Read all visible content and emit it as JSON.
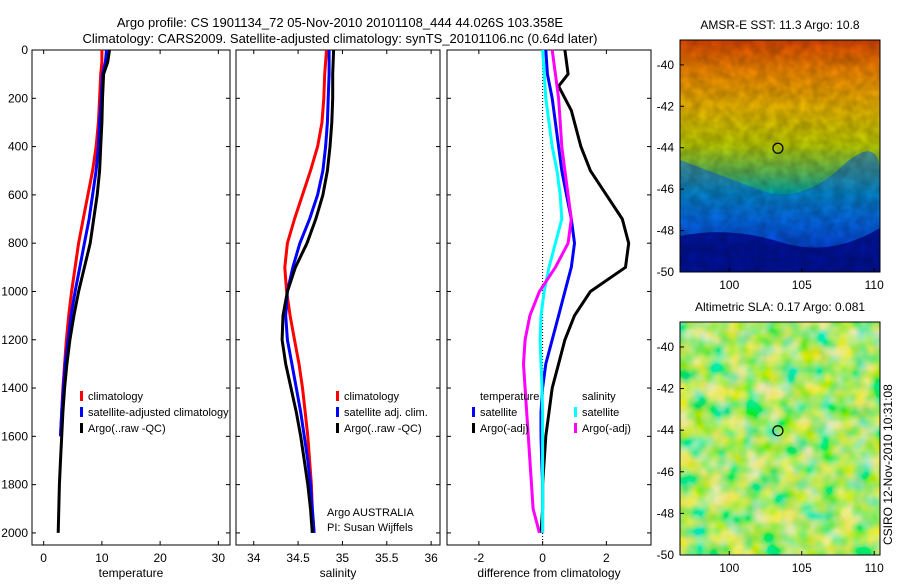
{
  "header": {
    "line1": "Argo profile: CS 1901134_72 05-Nov-2010 20101108_444 44.026S 103.358E",
    "line2": "Climatology: CARS2009. Satellite-adjusted climatology: synTS_20101106.nc (0.64d later)"
  },
  "credit": {
    "line1": "Argo AUSTRALIA",
    "line2": "PI: Susan Wijffels"
  },
  "side_stamp": "CSIRO 12-Nov-2010 10:31:08",
  "colors": {
    "red": "#ff0000",
    "blue": "#0000ff",
    "black": "#000000",
    "cyan": "#00ffff",
    "magenta": "#ff00ff"
  },
  "chart_data": [
    {
      "type": "line",
      "xlabel": "temperature",
      "ylabel": "",
      "xlim": [
        -2,
        32
      ],
      "ylim": [
        2050,
        0
      ],
      "xticks": [
        0,
        10,
        20,
        30
      ],
      "yticks": [
        0,
        200,
        400,
        600,
        800,
        1000,
        1200,
        1400,
        1600,
        1800,
        2000
      ],
      "legend_position": "lower-middle",
      "series": [
        {
          "name": "climatology",
          "color": "#ff0000",
          "points": [
            [
              10.0,
              0
            ],
            [
              10.0,
              50
            ],
            [
              9.8,
              100
            ],
            [
              9.6,
              200
            ],
            [
              9.4,
              300
            ],
            [
              9.0,
              400
            ],
            [
              8.4,
              500
            ],
            [
              7.6,
              600
            ],
            [
              6.8,
              700
            ],
            [
              6.0,
              800
            ],
            [
              5.4,
              900
            ],
            [
              4.8,
              1000
            ],
            [
              4.3,
              1100
            ],
            [
              3.9,
              1200
            ],
            [
              3.6,
              1300
            ],
            [
              3.3,
              1400
            ],
            [
              3.1,
              1500
            ],
            [
              2.9,
              1600
            ]
          ]
        },
        {
          "name": "satellite-adjusted climatology",
          "color": "#0000ff",
          "points": [
            [
              10.8,
              0
            ],
            [
              10.6,
              50
            ],
            [
              10.1,
              100
            ],
            [
              9.9,
              200
            ],
            [
              9.6,
              300
            ],
            [
              9.4,
              400
            ],
            [
              9.0,
              500
            ],
            [
              8.4,
              600
            ],
            [
              7.8,
              700
            ],
            [
              7.0,
              800
            ],
            [
              6.2,
              900
            ],
            [
              5.4,
              1000
            ],
            [
              4.7,
              1100
            ],
            [
              4.2,
              1200
            ],
            [
              3.7,
              1300
            ],
            [
              3.4,
              1400
            ],
            [
              3.1,
              1500
            ],
            [
              2.9,
              1600
            ]
          ]
        },
        {
          "name": "Argo(..raw -QC)",
          "color": "#000000",
          "points": [
            [
              11.3,
              0
            ],
            [
              11.0,
              50
            ],
            [
              10.3,
              100
            ],
            [
              10.1,
              200
            ],
            [
              10.0,
              300
            ],
            [
              9.8,
              400
            ],
            [
              9.6,
              500
            ],
            [
              9.2,
              600
            ],
            [
              8.6,
              700
            ],
            [
              8.0,
              800
            ],
            [
              7.0,
              900
            ],
            [
              6.0,
              1000
            ],
            [
              5.2,
              1100
            ],
            [
              4.5,
              1200
            ],
            [
              4.0,
              1300
            ],
            [
              3.6,
              1400
            ],
            [
              3.3,
              1500
            ],
            [
              3.1,
              1600
            ],
            [
              2.9,
              1700
            ],
            [
              2.7,
              1800
            ],
            [
              2.6,
              1900
            ],
            [
              2.5,
              2000
            ]
          ]
        }
      ]
    },
    {
      "type": "line",
      "xlabel": "salinity",
      "ylabel": "",
      "xlim": [
        33.8,
        36.1
      ],
      "ylim": [
        2050,
        0
      ],
      "xticks": [
        34,
        34.5,
        35,
        35.5,
        36
      ],
      "yticks": [
        0,
        200,
        400,
        600,
        800,
        1000,
        1200,
        1400,
        1600,
        1800,
        2000
      ],
      "legend_position": "lower-right",
      "series": [
        {
          "name": "climatology",
          "color": "#ff0000",
          "points": [
            [
              34.82,
              0
            ],
            [
              34.8,
              100
            ],
            [
              34.79,
              200
            ],
            [
              34.77,
              300
            ],
            [
              34.72,
              400
            ],
            [
              34.64,
              500
            ],
            [
              34.55,
              600
            ],
            [
              34.46,
              700
            ],
            [
              34.38,
              800
            ],
            [
              34.35,
              900
            ],
            [
              34.37,
              1000
            ],
            [
              34.41,
              1100
            ],
            [
              34.46,
              1200
            ],
            [
              34.51,
              1300
            ],
            [
              34.55,
              1400
            ],
            [
              34.58,
              1500
            ],
            [
              34.61,
              1600
            ],
            [
              34.63,
              1700
            ],
            [
              34.65,
              1800
            ],
            [
              34.66,
              1900
            ],
            [
              34.68,
              2000
            ]
          ]
        },
        {
          "name": "satellite adj. clim.",
          "color": "#0000ff",
          "points": [
            [
              34.85,
              0
            ],
            [
              34.85,
              100
            ],
            [
              34.84,
              200
            ],
            [
              34.83,
              300
            ],
            [
              34.81,
              400
            ],
            [
              34.78,
              500
            ],
            [
              34.72,
              600
            ],
            [
              34.63,
              700
            ],
            [
              34.52,
              800
            ],
            [
              34.44,
              900
            ],
            [
              34.38,
              1000
            ],
            [
              34.36,
              1100
            ],
            [
              34.38,
              1200
            ],
            [
              34.43,
              1300
            ],
            [
              34.48,
              1400
            ],
            [
              34.53,
              1500
            ],
            [
              34.57,
              1600
            ],
            [
              34.61,
              1700
            ],
            [
              34.64,
              1800
            ],
            [
              34.66,
              1900
            ],
            [
              34.68,
              2000
            ]
          ]
        },
        {
          "name": "Argo(..raw -QC)",
          "color": "#000000",
          "points": [
            [
              34.9,
              0
            ],
            [
              34.89,
              100
            ],
            [
              34.89,
              200
            ],
            [
              34.88,
              300
            ],
            [
              34.86,
              400
            ],
            [
              34.83,
              500
            ],
            [
              34.78,
              600
            ],
            [
              34.7,
              700
            ],
            [
              34.6,
              800
            ],
            [
              34.47,
              900
            ],
            [
              34.38,
              1000
            ],
            [
              34.33,
              1100
            ],
            [
              34.32,
              1200
            ],
            [
              34.36,
              1300
            ],
            [
              34.42,
              1400
            ],
            [
              34.48,
              1500
            ],
            [
              34.53,
              1600
            ],
            [
              34.57,
              1700
            ],
            [
              34.61,
              1800
            ],
            [
              34.64,
              1900
            ],
            [
              34.66,
              2000
            ]
          ]
        }
      ]
    },
    {
      "type": "line",
      "xlabel": "difference from climatology",
      "ylabel": "",
      "xlim": [
        -3,
        3.4
      ],
      "ylim": [
        2050,
        0
      ],
      "xticks": [
        -2,
        0,
        2
      ],
      "yticks": [
        0,
        200,
        400,
        600,
        800,
        1000,
        1200,
        1400,
        1600,
        1800,
        2000
      ],
      "legend_position": "lower-middle",
      "legend_headers": [
        "temperature",
        "salinity"
      ],
      "series": [
        {
          "name": "satellite",
          "group": "temperature",
          "color": "#0000ff",
          "points": [
            [
              0.1,
              0
            ],
            [
              0.15,
              100
            ],
            [
              0.3,
              200
            ],
            [
              0.4,
              300
            ],
            [
              0.5,
              400
            ],
            [
              0.6,
              500
            ],
            [
              0.75,
              600
            ],
            [
              0.9,
              700
            ],
            [
              1.0,
              800
            ],
            [
              0.9,
              900
            ],
            [
              0.7,
              1000
            ],
            [
              0.5,
              1100
            ],
            [
              0.3,
              1200
            ],
            [
              0.1,
              1300
            ],
            [
              0.0,
              1400
            ],
            [
              -0.05,
              1500
            ],
            [
              -0.05,
              1600
            ],
            [
              -0.03,
              1700
            ],
            [
              0.0,
              1800
            ],
            [
              0.0,
              1900
            ],
            [
              0.0,
              2000
            ]
          ]
        },
        {
          "name": "Argo(-adj)",
          "group": "temperature",
          "color": "#000000",
          "points": [
            [
              0.7,
              0
            ],
            [
              0.8,
              100
            ],
            [
              0.5,
              150
            ],
            [
              0.9,
              250
            ],
            [
              1.2,
              400
            ],
            [
              1.5,
              500
            ],
            [
              2.0,
              600
            ],
            [
              2.5,
              700
            ],
            [
              2.7,
              800
            ],
            [
              2.6,
              900
            ],
            [
              1.5,
              1000
            ],
            [
              1.0,
              1100
            ],
            [
              0.7,
              1200
            ],
            [
              0.5,
              1300
            ],
            [
              0.3,
              1400
            ],
            [
              0.2,
              1500
            ],
            [
              0.1,
              1600
            ],
            [
              0.05,
              1700
            ],
            [
              0.0,
              1800
            ],
            [
              0.0,
              1900
            ],
            [
              -0.05,
              2000
            ]
          ]
        },
        {
          "name": "satellite",
          "group": "salinity",
          "color": "#00ffff",
          "points": [
            [
              0.0,
              0
            ],
            [
              0.05,
              100
            ],
            [
              0.1,
              200
            ],
            [
              0.2,
              300
            ],
            [
              0.3,
              400
            ],
            [
              0.45,
              500
            ],
            [
              0.55,
              600
            ],
            [
              0.6,
              700
            ],
            [
              0.4,
              800
            ],
            [
              0.2,
              900
            ],
            [
              0.05,
              1000
            ],
            [
              -0.05,
              1100
            ],
            [
              -0.08,
              1200
            ],
            [
              -0.05,
              1300
            ],
            [
              -0.02,
              1400
            ],
            [
              0.0,
              1500
            ],
            [
              0.0,
              1600
            ],
            [
              0.0,
              1700
            ],
            [
              0.0,
              1800
            ],
            [
              0.0,
              1900
            ],
            [
              0.0,
              2000
            ]
          ]
        },
        {
          "name": "Argo(-adj)",
          "group": "salinity",
          "color": "#ff00ff",
          "points": [
            [
              0.3,
              0
            ],
            [
              0.4,
              100
            ],
            [
              0.5,
              200
            ],
            [
              0.55,
              300
            ],
            [
              0.6,
              400
            ],
            [
              0.7,
              500
            ],
            [
              0.8,
              600
            ],
            [
              0.9,
              700
            ],
            [
              0.8,
              800
            ],
            [
              0.4,
              900
            ],
            [
              -0.1,
              1000
            ],
            [
              -0.4,
              1100
            ],
            [
              -0.55,
              1200
            ],
            [
              -0.6,
              1300
            ],
            [
              -0.55,
              1400
            ],
            [
              -0.5,
              1500
            ],
            [
              -0.45,
              1600
            ],
            [
              -0.4,
              1700
            ],
            [
              -0.35,
              1800
            ],
            [
              -0.3,
              1900
            ],
            [
              -0.1,
              2000
            ]
          ]
        }
      ],
      "annotations": [
        "zero reference line (dotted) at x = 0"
      ]
    },
    {
      "type": "heatmap",
      "title": "AMSR-E SST: 11.3  Argo: 10.8",
      "xlim": [
        96.6,
        110.4
      ],
      "ylim": [
        -50,
        -38.8
      ],
      "xticks": [
        100,
        105,
        110
      ],
      "yticks": [
        -40,
        -42,
        -44,
        -46,
        -48,
        -50
      ],
      "marker": {
        "lon": 103.358,
        "lat": -44.026,
        "shape": "circle"
      },
      "colormap": "jet"
    },
    {
      "type": "heatmap",
      "title": "Altimetric SLA: 0.17  Argo: 0.081",
      "xlim": [
        96.6,
        110.4
      ],
      "ylim": [
        -50,
        -38.8
      ],
      "xticks": [
        100,
        105,
        110
      ],
      "yticks": [
        -40,
        -42,
        -44,
        -46,
        -48,
        -50
      ],
      "marker": {
        "lon": 103.358,
        "lat": -44.026,
        "shape": "circle"
      },
      "colormap": "jet"
    }
  ]
}
